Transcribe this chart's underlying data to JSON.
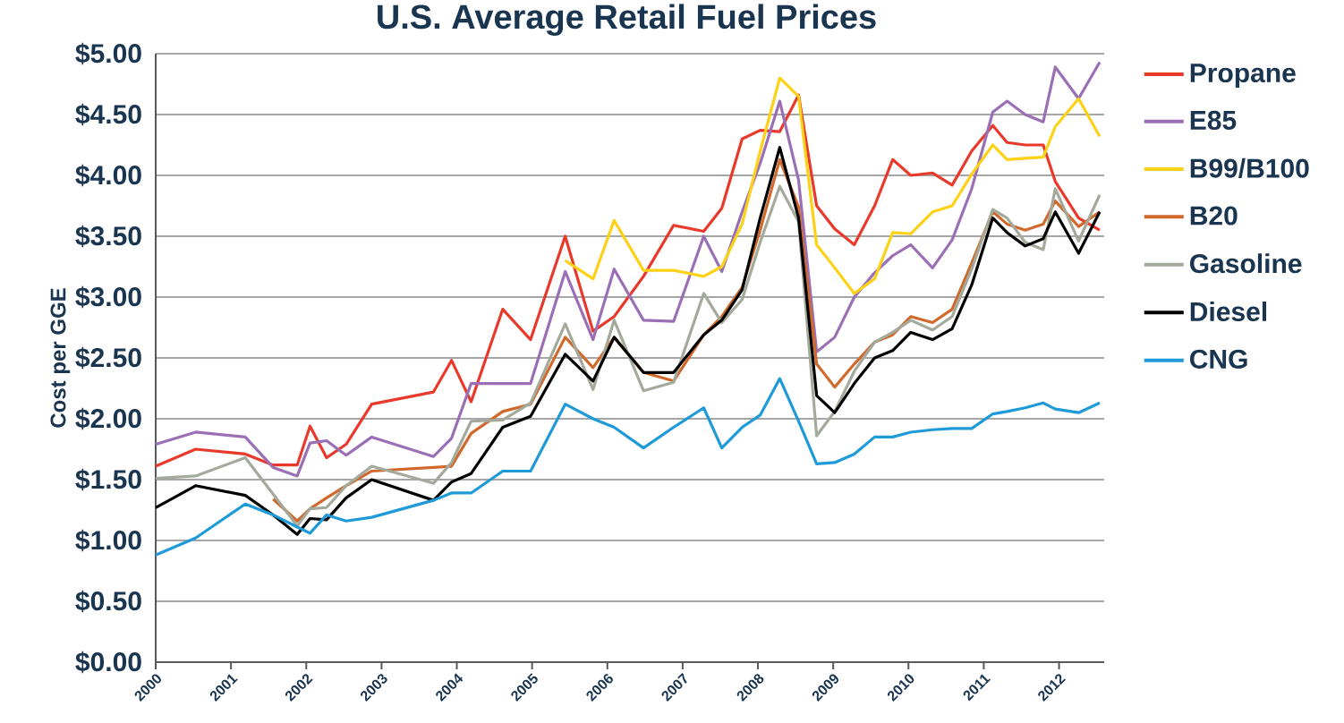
{
  "chart_data": {
    "type": "line",
    "title": "U.S. Average Retail Fuel Prices",
    "ylabel": "Cost per GGE",
    "x": [
      2000.0,
      2000.53,
      2001.19,
      2001.56,
      2001.88,
      2002.05,
      2002.27,
      2002.53,
      2002.87,
      2003.69,
      2003.93,
      2004.19,
      2004.61,
      2004.98,
      2005.44,
      2005.81,
      2006.09,
      2006.48,
      2006.88,
      2007.28,
      2007.52,
      2007.79,
      2008.03,
      2008.29,
      2008.54,
      2008.78,
      2009.02,
      2009.28,
      2009.55,
      2009.79,
      2010.03,
      2010.32,
      2010.58,
      2010.84,
      2011.12,
      2011.31,
      2011.55,
      2011.79,
      2011.95,
      2012.26,
      2012.54
    ],
    "series": [
      {
        "name": "Propane",
        "color": "#e8392a",
        "values": [
          1.61,
          1.75,
          1.71,
          1.62,
          1.62,
          1.94,
          1.68,
          1.79,
          2.12,
          2.22,
          2.48,
          2.14,
          2.9,
          2.65,
          3.5,
          2.72,
          2.84,
          3.17,
          3.59,
          3.54,
          3.73,
          4.3,
          4.37,
          4.36,
          4.66,
          3.75,
          3.56,
          3.43,
          3.75,
          4.13,
          4.0,
          4.02,
          3.92,
          4.2,
          4.41,
          4.27,
          4.25,
          4.25,
          3.95,
          3.65,
          3.55
        ]
      },
      {
        "name": "E85",
        "color": "#9b6fb5",
        "values": [
          1.79,
          1.89,
          1.85,
          1.6,
          1.53,
          1.8,
          1.82,
          1.7,
          1.85,
          1.69,
          1.84,
          2.29,
          2.29,
          2.29,
          3.21,
          2.65,
          3.23,
          2.81,
          2.8,
          3.5,
          3.21,
          3.7,
          4.1,
          4.61,
          3.96,
          2.55,
          2.67,
          3.0,
          3.2,
          3.34,
          3.43,
          3.24,
          3.47,
          3.89,
          4.52,
          4.61,
          4.5,
          4.44,
          4.89,
          4.63,
          4.93
        ]
      },
      {
        "name": "B99/B100",
        "color": "#fcd116",
        "values": [
          null,
          null,
          null,
          null,
          null,
          null,
          null,
          null,
          null,
          null,
          null,
          null,
          null,
          null,
          3.3,
          3.15,
          3.63,
          3.22,
          3.22,
          3.17,
          3.25,
          3.6,
          4.2,
          4.8,
          4.65,
          3.43,
          3.24,
          3.03,
          3.15,
          3.53,
          3.52,
          3.7,
          3.75,
          4.01,
          4.25,
          4.13,
          4.14,
          4.15,
          4.4,
          4.63,
          4.32
        ]
      },
      {
        "name": "B20",
        "color": "#d0692b",
        "values": [
          null,
          null,
          null,
          1.34,
          1.16,
          1.26,
          1.35,
          1.45,
          1.57,
          1.6,
          1.61,
          1.88,
          2.06,
          2.12,
          2.67,
          2.42,
          2.67,
          2.38,
          2.31,
          2.69,
          2.84,
          3.08,
          3.55,
          4.13,
          3.74,
          2.45,
          2.26,
          2.45,
          2.63,
          2.69,
          2.84,
          2.79,
          2.9,
          3.28,
          3.7,
          3.6,
          3.55,
          3.6,
          3.79,
          3.58,
          3.7
        ]
      },
      {
        "name": "Gasoline",
        "color": "#a3aa9c",
        "values": [
          1.51,
          1.53,
          1.68,
          1.38,
          1.12,
          1.26,
          1.27,
          1.45,
          1.61,
          1.47,
          1.64,
          1.98,
          1.99,
          2.13,
          2.78,
          2.24,
          2.81,
          2.23,
          2.3,
          3.03,
          2.79,
          2.98,
          3.45,
          3.91,
          3.62,
          1.86,
          2.06,
          2.39,
          2.63,
          2.71,
          2.81,
          2.73,
          2.84,
          3.23,
          3.72,
          3.65,
          3.45,
          3.39,
          3.89,
          3.46,
          3.84
        ]
      },
      {
        "name": "Diesel",
        "color": "#000000",
        "values": [
          1.27,
          1.45,
          1.37,
          1.21,
          1.05,
          1.18,
          1.17,
          1.35,
          1.5,
          1.33,
          1.48,
          1.55,
          1.93,
          2.02,
          2.53,
          2.31,
          2.67,
          2.38,
          2.38,
          2.69,
          2.81,
          3.06,
          3.65,
          4.23,
          3.65,
          2.19,
          2.05,
          2.29,
          2.5,
          2.56,
          2.71,
          2.65,
          2.74,
          3.1,
          3.65,
          3.53,
          3.42,
          3.48,
          3.7,
          3.36,
          3.7
        ]
      },
      {
        "name": "CNG",
        "color": "#1f9ad8",
        "values": [
          0.88,
          1.02,
          1.3,
          1.21,
          1.11,
          1.06,
          1.21,
          1.16,
          1.19,
          1.33,
          1.39,
          1.39,
          1.57,
          1.57,
          2.12,
          2.0,
          1.93,
          1.76,
          1.93,
          2.09,
          1.76,
          1.93,
          2.03,
          2.33,
          1.98,
          1.63,
          1.64,
          1.71,
          1.85,
          1.85,
          1.89,
          1.91,
          1.92,
          1.92,
          2.04,
          2.06,
          2.09,
          2.13,
          2.08,
          2.05,
          2.13
        ]
      }
    ],
    "xlim": [
      2000,
      2012.6
    ],
    "xticks": [
      2000,
      2001,
      2002,
      2003,
      2004,
      2005,
      2006,
      2007,
      2008,
      2009,
      2010,
      2011,
      2012
    ],
    "ylim": [
      0,
      5
    ],
    "yticks": [
      {
        "value": 0,
        "label": "$0.00"
      },
      {
        "value": 0.5,
        "label": "$0.50"
      },
      {
        "value": 1,
        "label": "$1.00"
      },
      {
        "value": 1.5,
        "label": "$1.50"
      },
      {
        "value": 2,
        "label": "$2.00"
      },
      {
        "value": 2.5,
        "label": "$2.50"
      },
      {
        "value": 3,
        "label": "$3.00"
      },
      {
        "value": 3.5,
        "label": "$3.50"
      },
      {
        "value": 4,
        "label": "$4.00"
      },
      {
        "value": 4.5,
        "label": "$4.50"
      },
      {
        "value": 5,
        "label": "$5.00"
      }
    ],
    "grid": "y",
    "legend": "right",
    "marker": "none",
    "line_style": "solid"
  }
}
